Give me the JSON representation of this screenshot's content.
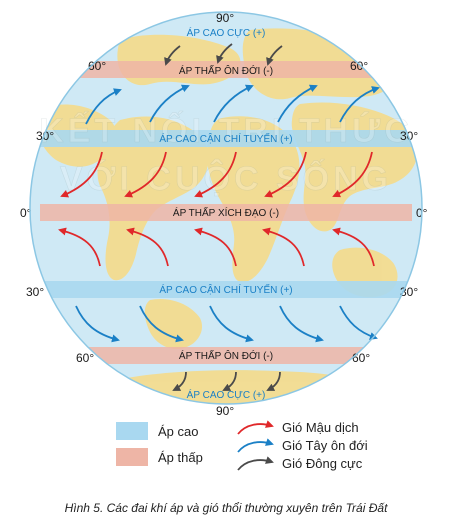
{
  "latitudes": {
    "lat90_top": "90°",
    "lat60_left": "60°",
    "lat60_right": "60°",
    "lat30_left": "30°",
    "lat30_right": "30°",
    "lat0_left": "0°",
    "lat0_right": "0°",
    "lat30s_left": "30°",
    "lat30s_right": "30°",
    "lat60s_left": "60°",
    "lat60s_right": "60°",
    "lat90_bottom": "90°"
  },
  "belts": {
    "polar_high_north": "ÁP CAO CỰC (+)",
    "subpolar_low_north": "ÁP THẤP ÔN ĐỚI (-)",
    "subtropical_high_north": "ÁP CAO CẬN CHÍ TUYẾN (+)",
    "equatorial_low": "ÁP THẤP XÍCH ĐẠO (-)",
    "subtropical_high_south": "ÁP CAO CẬN CHÍ TUYẾN (+)",
    "subpolar_low_south": "ÁP THẤP ÔN ĐỚI (-)",
    "polar_high_south": "ÁP CAO CỰC (+)"
  },
  "watermark": {
    "line1": "KẾT NỐI TRI THỨC",
    "line2": "VỚI CUỘC SỐNG"
  },
  "legend": {
    "high": "Áp cao",
    "low": "Áp thấp",
    "trade": "Gió Mậu dịch",
    "westerly": "Gió Tây ôn đới",
    "polar_easterly": "Gió Đông cực"
  },
  "colors": {
    "high_band": "#a9d8f0",
    "low_band": "#eeb5a6",
    "trade_wind": "#e0282a",
    "westerly": "#1b80c6",
    "polar_easterly": "#4a4a4a",
    "ocean": "#cfe9f5",
    "land": "#f3dc8f"
  },
  "caption": "Hình 5. Các đai khí áp và gió thổi thường xuyên trên Trái Đất"
}
